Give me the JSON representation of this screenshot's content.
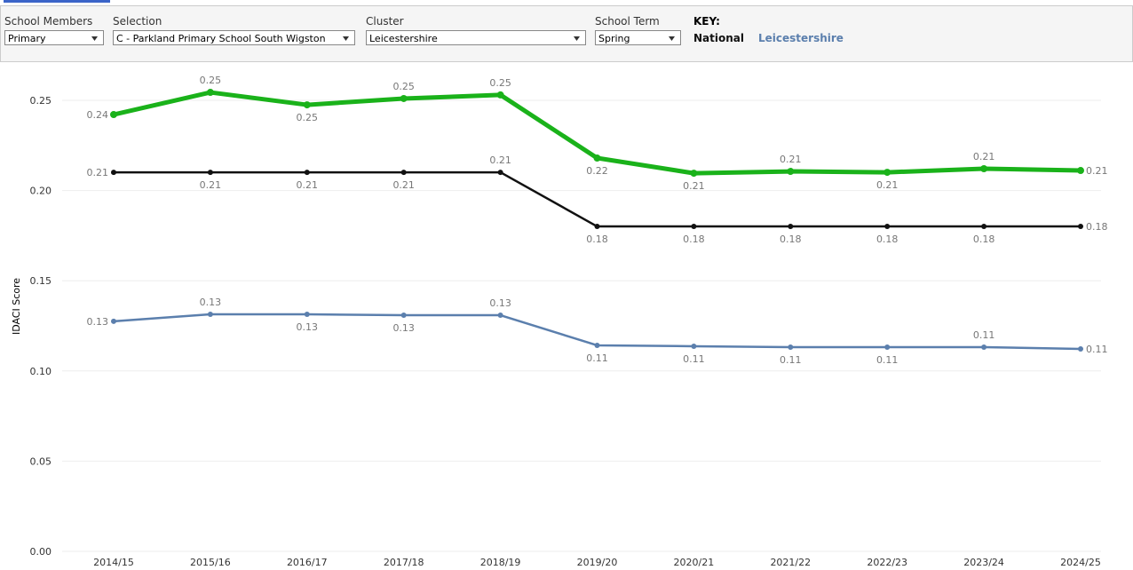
{
  "filters": [
    {
      "label": "School Members",
      "value": "Primary"
    },
    {
      "label": "Selection",
      "value": "C - Parkland Primary School South Wigston"
    },
    {
      "label": "Cluster",
      "value": "Leicestershire"
    },
    {
      "label": "School Term",
      "value": "Spring"
    }
  ],
  "key": {
    "title": "KEY:"
  },
  "chart_data": {
    "type": "line",
    "y_label": "IDACI Score",
    "categories": [
      "2014/15",
      "2015/16",
      "2016/17",
      "2017/18",
      "2018/19",
      "2019/20",
      "2020/21",
      "2021/22",
      "2022/23",
      "2023/24",
      "2024/25"
    ],
    "ylim": [
      0,
      0.27
    ],
    "yticks": [
      {
        "value": 0,
        "label": "0.00"
      },
      0.05,
      {
        "value": 0.1,
        "label": "0.10"
      },
      0.15,
      {
        "value": 0.2,
        "label": "0.20"
      },
      0.25
    ],
    "grid": true,
    "series": [
      {
        "color": "#1ab21a",
        "width": 5,
        "values": [
          0.2421,
          0.2544,
          0.2475,
          0.251,
          0.253,
          0.218,
          0.2096,
          0.2106,
          0.2101,
          0.2121,
          0.2111
        ],
        "value_labels": [
          "0.24",
          "0.25",
          "0.25",
          "0.25",
          "0.25",
          "0.22",
          "0.21",
          "0.21",
          "0.21",
          "0.21",
          "0.21"
        ]
      },
      {
        "name": "National",
        "color": "#111111",
        "width": 2.5,
        "values": [
          0.2101,
          0.2101,
          0.2101,
          0.2101,
          0.2101,
          0.1801,
          0.1801,
          0.1801,
          0.1801,
          0.1801,
          0.1801
        ],
        "value_labels": [
          "0.21",
          "0.21",
          "0.21",
          "0.21",
          "0.21",
          "0.18",
          "0.18",
          "0.18",
          "0.18",
          "0.18",
          "0.18"
        ]
      },
      {
        "name": "Leicestershire",
        "color": "#5b7fad",
        "width": 2.5,
        "values": [
          0.1275,
          0.1314,
          0.1314,
          0.1309,
          0.1309,
          0.1142,
          0.1137,
          0.1132,
          0.1132,
          0.1132,
          0.1122
        ],
        "value_labels": [
          "0.13",
          "0.13",
          "0.13",
          "0.13",
          "0.13",
          "0.11",
          "0.11",
          "0.11",
          "0.11",
          "0.11",
          "0.11"
        ]
      }
    ]
  }
}
